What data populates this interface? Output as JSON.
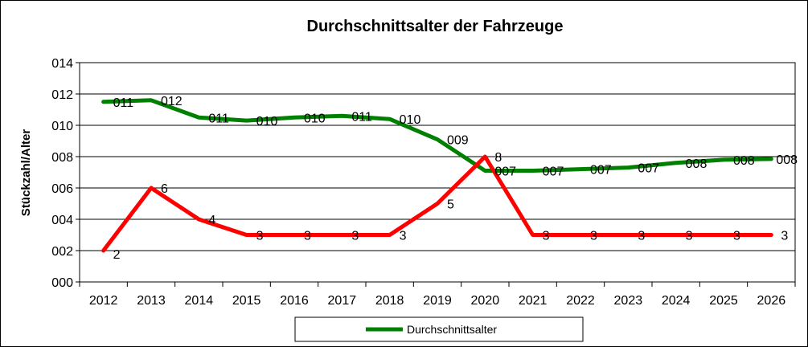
{
  "chart_data": {
    "type": "line",
    "title": "Durchschnittsalter der Fahrzeuge",
    "xlabel": "",
    "ylabel": "Stückzahl/Alter",
    "ylim": [
      0,
      14
    ],
    "yticks": [
      "000",
      "002",
      "004",
      "006",
      "008",
      "010",
      "012",
      "014"
    ],
    "categories": [
      "2012",
      "2013",
      "2014",
      "2015",
      "2016",
      "2017",
      "2018",
      "2019",
      "2020",
      "2021",
      "2022",
      "2023",
      "2024",
      "2025",
      "2026"
    ],
    "grid": true,
    "legend_position": "bottom",
    "series": [
      {
        "name": "Durchschnittsalter",
        "color": "#008000",
        "values": [
          11.5,
          11.6,
          10.5,
          10.3,
          10.5,
          10.6,
          10.4,
          9.1,
          7.1,
          7.1,
          7.2,
          7.3,
          7.6,
          7.8,
          7.85
        ],
        "labels": [
          "011",
          "012",
          "011",
          "010",
          "010",
          "011",
          "010",
          "009",
          "007",
          "007",
          "007",
          "007",
          "008",
          "008",
          "008"
        ]
      },
      {
        "name": "",
        "color": "#ff0000",
        "values": [
          2,
          6,
          4,
          3,
          3,
          3,
          3,
          5,
          8,
          3,
          3,
          3,
          3,
          3,
          3
        ],
        "labels": [
          "2",
          "6",
          "4",
          "3",
          "3",
          "3",
          "3",
          "5",
          "8",
          "3",
          "3",
          "3",
          "3",
          "3",
          "3"
        ]
      }
    ]
  }
}
